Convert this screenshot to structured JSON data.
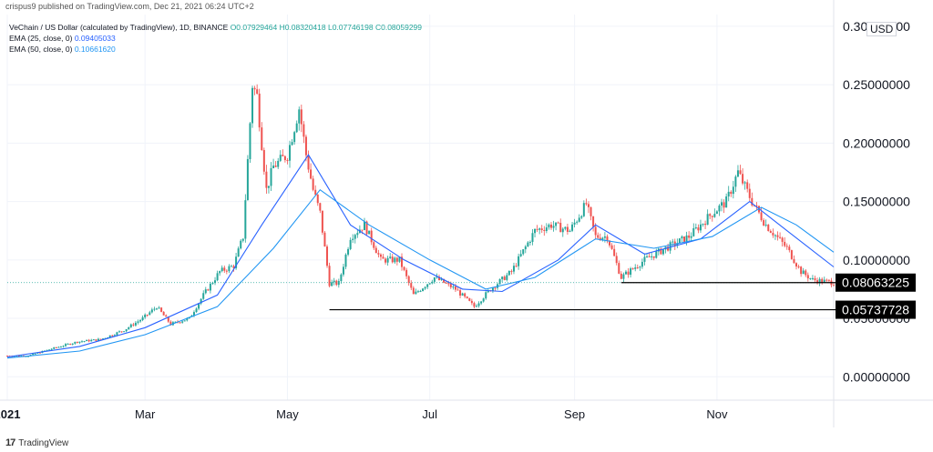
{
  "header": {
    "published": "crispus9 published on TradingView.com, Dec 21, 2021 06:24 UTC+2"
  },
  "legend": {
    "symbol": "VeChain / US Dollar (calculated by TradingView), 1D, BINANCE",
    "ohlc": "O0.07929464 H0.08320418 L0.07746198 C0.08059299",
    "ema25_label": "EMA (25, close, 0)",
    "ema25_value": "0.09405033",
    "ema50_label": "EMA (50, close, 0)",
    "ema50_value": "0.10661620"
  },
  "currency_badge": "USD",
  "footer": {
    "brand": "TradingView",
    "logo": "17"
  },
  "colors": {
    "up": "#26a69a",
    "down": "#ef5350",
    "ema25": "#2962ff",
    "ema50": "#2196f3",
    "axis_text": "#131722",
    "price_tag_bg": "#000000"
  },
  "chart_data": {
    "type": "candlestick",
    "title": "",
    "xlabel": "",
    "ylabel": "",
    "x_range": [
      "2021-01-01",
      "2021-12-21"
    ],
    "ylim": [
      -0.02,
      0.31
    ],
    "x_ticks": [
      {
        "label": "2021",
        "date": "2021-01-01"
      },
      {
        "label": "Mar",
        "date": "2021-03-01"
      },
      {
        "label": "May",
        "date": "2021-05-01"
      },
      {
        "label": "Jul",
        "date": "2021-07-01"
      },
      {
        "label": "Sep",
        "date": "2021-09-01"
      },
      {
        "label": "Nov",
        "date": "2021-11-01"
      }
    ],
    "y_ticks": [
      {
        "label": "0.00000000",
        "value": 0.0
      },
      {
        "label": "0.05000000",
        "value": 0.05
      },
      {
        "label": "0.10000000",
        "value": 0.1
      },
      {
        "label": "0.15000000",
        "value": 0.15
      },
      {
        "label": "0.20000000",
        "value": 0.2
      },
      {
        "label": "0.25000000",
        "value": 0.25
      },
      {
        "label": "0.30000000",
        "value": 0.3
      }
    ],
    "price_tags": [
      {
        "label": "0.08063225",
        "value": 0.0806
      },
      {
        "label": "0.05737728",
        "value": 0.0574
      }
    ],
    "last_price": 0.0806,
    "support_lines": [
      {
        "value": 0.0806,
        "from": "2021-09-21",
        "to": "2021-12-21"
      },
      {
        "value": 0.0574,
        "from": "2021-05-19",
        "to": "2021-12-21"
      }
    ],
    "price_path": [
      [
        "2021-01-01",
        0.018
      ],
      [
        "2021-01-10",
        0.018
      ],
      [
        "2021-01-20",
        0.024
      ],
      [
        "2021-01-31",
        0.03
      ],
      [
        "2021-02-10",
        0.032
      ],
      [
        "2021-02-20",
        0.04
      ],
      [
        "2021-02-28",
        0.05
      ],
      [
        "2021-03-06",
        0.06
      ],
      [
        "2021-03-12",
        0.045
      ],
      [
        "2021-03-20",
        0.05
      ],
      [
        "2021-03-26",
        0.07
      ],
      [
        "2021-04-02",
        0.09
      ],
      [
        "2021-04-08",
        0.095
      ],
      [
        "2021-04-12",
        0.12
      ],
      [
        "2021-04-16",
        0.25
      ],
      [
        "2021-04-18",
        0.24
      ],
      [
        "2021-04-22",
        0.16
      ],
      [
        "2021-04-25",
        0.18
      ],
      [
        "2021-05-01",
        0.19
      ],
      [
        "2021-05-06",
        0.23
      ],
      [
        "2021-05-09",
        0.19
      ],
      [
        "2021-05-12",
        0.16
      ],
      [
        "2021-05-15",
        0.14
      ],
      [
        "2021-05-19",
        0.08
      ],
      [
        "2021-05-23",
        0.08
      ],
      [
        "2021-05-28",
        0.12
      ],
      [
        "2021-06-03",
        0.13
      ],
      [
        "2021-06-10",
        0.1
      ],
      [
        "2021-06-18",
        0.1
      ],
      [
        "2021-06-24",
        0.07
      ],
      [
        "2021-07-03",
        0.085
      ],
      [
        "2021-07-12",
        0.075
      ],
      [
        "2021-07-20",
        0.06
      ],
      [
        "2021-07-27",
        0.075
      ],
      [
        "2021-08-05",
        0.09
      ],
      [
        "2021-08-15",
        0.125
      ],
      [
        "2021-08-22",
        0.13
      ],
      [
        "2021-08-30",
        0.125
      ],
      [
        "2021-09-06",
        0.148
      ],
      [
        "2021-09-10",
        0.12
      ],
      [
        "2021-09-15",
        0.12
      ],
      [
        "2021-09-21",
        0.085
      ],
      [
        "2021-10-01",
        0.1
      ],
      [
        "2021-10-10",
        0.11
      ],
      [
        "2021-10-20",
        0.12
      ],
      [
        "2021-10-30",
        0.14
      ],
      [
        "2021-11-05",
        0.15
      ],
      [
        "2021-11-10",
        0.175
      ],
      [
        "2021-11-16",
        0.15
      ],
      [
        "2021-11-22",
        0.13
      ],
      [
        "2021-12-01",
        0.11
      ],
      [
        "2021-12-07",
        0.09
      ],
      [
        "2021-12-12",
        0.083
      ],
      [
        "2021-12-21",
        0.0806
      ]
    ],
    "ema25_path": [
      [
        "2021-01-01",
        0.017
      ],
      [
        "2021-02-01",
        0.026
      ],
      [
        "2021-03-01",
        0.042
      ],
      [
        "2021-04-01",
        0.07
      ],
      [
        "2021-04-20",
        0.13
      ],
      [
        "2021-05-10",
        0.19
      ],
      [
        "2021-05-28",
        0.13
      ],
      [
        "2021-06-20",
        0.1
      ],
      [
        "2021-07-15",
        0.075
      ],
      [
        "2021-08-01",
        0.073
      ],
      [
        "2021-08-25",
        0.1
      ],
      [
        "2021-09-10",
        0.13
      ],
      [
        "2021-10-01",
        0.105
      ],
      [
        "2021-10-25",
        0.118
      ],
      [
        "2021-11-15",
        0.15
      ],
      [
        "2021-12-01",
        0.125
      ],
      [
        "2021-12-21",
        0.094
      ]
    ],
    "ema50_path": [
      [
        "2021-01-01",
        0.016
      ],
      [
        "2021-02-01",
        0.022
      ],
      [
        "2021-03-01",
        0.036
      ],
      [
        "2021-04-01",
        0.06
      ],
      [
        "2021-04-25",
        0.11
      ],
      [
        "2021-05-15",
        0.16
      ],
      [
        "2021-06-05",
        0.13
      ],
      [
        "2021-07-01",
        0.1
      ],
      [
        "2021-07-25",
        0.075
      ],
      [
        "2021-08-15",
        0.085
      ],
      [
        "2021-09-10",
        0.118
      ],
      [
        "2021-10-05",
        0.11
      ],
      [
        "2021-10-30",
        0.12
      ],
      [
        "2021-11-20",
        0.145
      ],
      [
        "2021-12-05",
        0.13
      ],
      [
        "2021-12-21",
        0.1066
      ]
    ]
  }
}
